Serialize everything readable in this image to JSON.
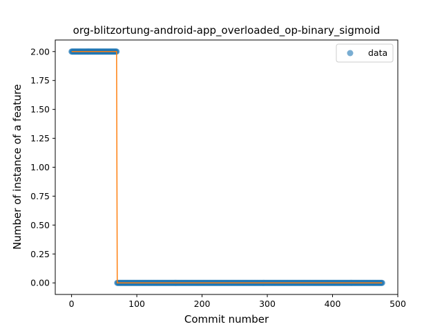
{
  "chart_data": {
    "type": "scatter",
    "title": "org-blitzortung-android-app_overloaded_op-binary_sigmoid",
    "xlabel": "Commit number",
    "ylabel": "Number of instance of a feature",
    "xlim": [
      -25,
      500
    ],
    "ylim": [
      -0.1,
      2.1
    ],
    "x_ticks": [
      0,
      100,
      200,
      300,
      400,
      500
    ],
    "y_ticks": [
      0.0,
      0.25,
      0.5,
      0.75,
      1.0,
      1.25,
      1.5,
      1.75,
      2.0
    ],
    "x_tick_labels": [
      "0",
      "100",
      "200",
      "300",
      "400",
      "500"
    ],
    "y_tick_labels": [
      "0.00",
      "0.25",
      "0.50",
      "0.75",
      "1.00",
      "1.25",
      "1.50",
      "1.75",
      "2.00"
    ],
    "legend_position": "top-right",
    "grid": false,
    "series": [
      {
        "name": "data",
        "kind": "scatter",
        "color": "#1f77b4",
        "segments": [
          {
            "x_start": 0,
            "x_end": 69,
            "y": 2
          },
          {
            "x_start": 70,
            "x_end": 476,
            "y": 0
          }
        ]
      },
      {
        "kind": "line",
        "color": "#ff7f0e",
        "points": [
          [
            0,
            2
          ],
          [
            69,
            2
          ],
          [
            70,
            0
          ],
          [
            476,
            0
          ]
        ]
      }
    ]
  }
}
